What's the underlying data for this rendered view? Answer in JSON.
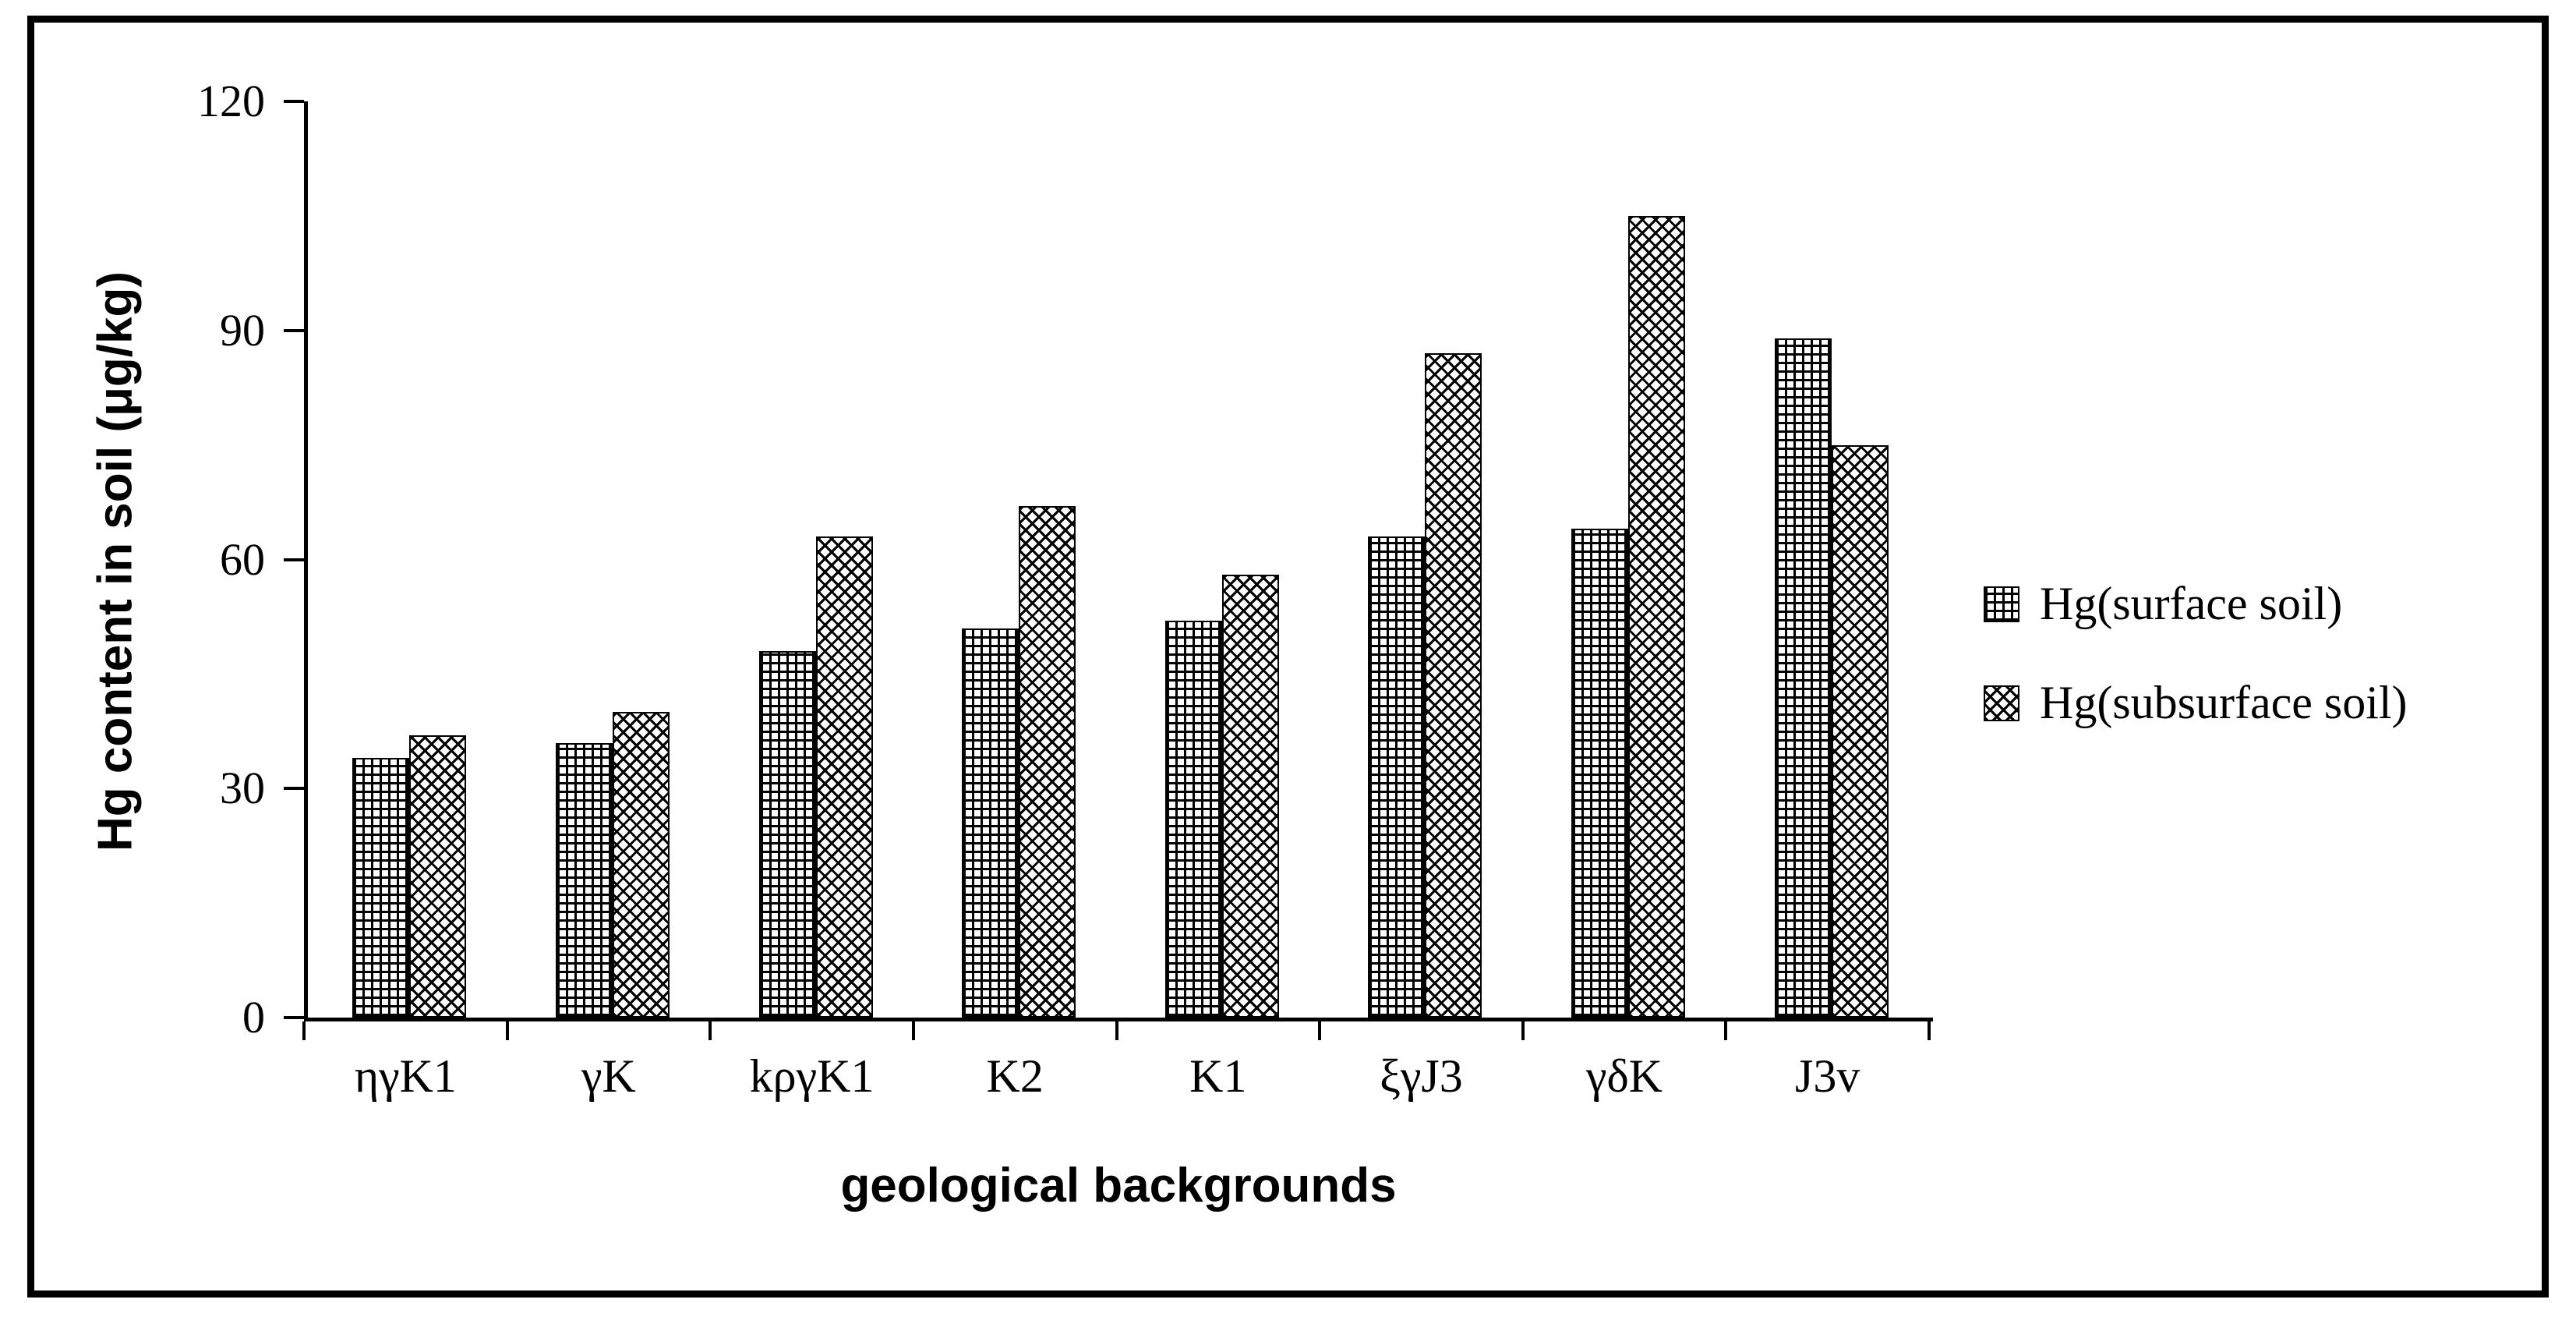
{
  "chart_data": {
    "type": "bar",
    "title": "",
    "xlabel": "geological backgrounds",
    "ylabel": "Hg content in soil (μg/kg)",
    "categories": [
      "ηγK1",
      "γK",
      "kργK1",
      "K2",
      "K1",
      "ξγJ3",
      "γδK",
      "J3v"
    ],
    "series": [
      {
        "name": "Hg(surface soil)",
        "pattern": "grid",
        "values": [
          34,
          36,
          48,
          51,
          52,
          63,
          64,
          89
        ]
      },
      {
        "name": "Hg(subsurface soil)",
        "pattern": "diamond",
        "values": [
          37,
          40,
          63,
          67,
          58,
          87,
          105,
          75
        ]
      }
    ],
    "ylim": [
      0,
      120
    ],
    "yticks": [
      0,
      30,
      60,
      90,
      120
    ],
    "grid": false,
    "legend_position": "right"
  },
  "colors": {
    "bar_fill": "#ffffff",
    "bar_stroke": "#000000",
    "axis": "#000000",
    "frame_border": "#000000",
    "background": "#ffffff"
  }
}
